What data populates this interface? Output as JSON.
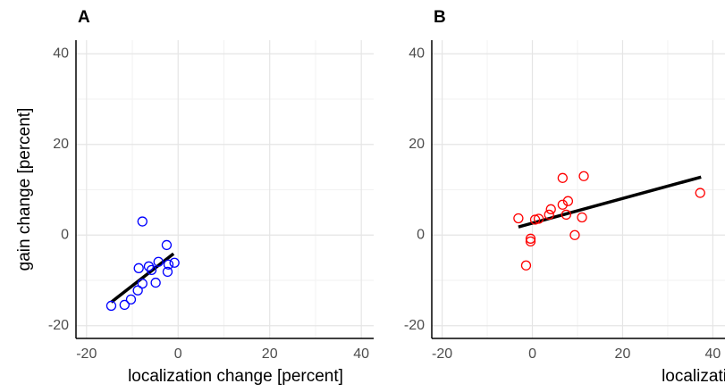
{
  "chart_data": [
    {
      "type": "scatter",
      "title": "A",
      "x_label": "localization change [percent]",
      "y_label": "gain change [percent]",
      "series": [
        {
          "color": "#0000ff",
          "x": [
            -14.6,
            -11.7,
            -10.3,
            -8.8,
            -7.8,
            -8.6,
            -7.8,
            -6.4,
            -5.8,
            -4.9,
            -4.3,
            -2.5,
            -2.1,
            -2.3,
            -0.8
          ],
          "values": [
            -15.6,
            -15.4,
            -14.2,
            -12.2,
            -10.7,
            -7.3,
            3.0,
            -6.9,
            -7.7,
            -10.5,
            -5.9,
            -2.2,
            -6.5,
            -8.1,
            -6.1
          ]
        }
      ],
      "fit_line": {
        "color": "#000000",
        "x": [
          -14.6,
          -1.0
        ],
        "values": [
          -14.8,
          -4.1
        ]
      },
      "xlim": [
        -22.3,
        42.7
      ],
      "ylim": [
        -22.8,
        43
      ],
      "xticks": [
        -20,
        0,
        20,
        40
      ],
      "yticks": [
        -20,
        0,
        20,
        40
      ],
      "x_minor_ticks": [
        -10,
        10,
        30
      ],
      "y_minor_ticks": [
        -10,
        10,
        30
      ],
      "grid": true
    },
    {
      "type": "scatter",
      "title": "B",
      "x_label": "localization change [percent]",
      "series": [
        {
          "color": "#ff0000",
          "x": [
            -3.1,
            -1.4,
            -0.4,
            -0.4,
            0.6,
            1.4,
            3.7,
            4.1,
            6.7,
            6.7,
            7.5,
            7.9,
            9.4,
            11.0,
            11.4,
            37.2
          ],
          "values": [
            3.7,
            -6.7,
            -0.8,
            -1.4,
            3.4,
            3.6,
            4.5,
            5.7,
            12.6,
            6.7,
            4.5,
            7.5,
            0.0,
            3.9,
            13.0,
            9.3
          ]
        }
      ],
      "fit_line": {
        "color": "#000000",
        "x": [
          -3.1,
          37.4
        ],
        "values": [
          1.8,
          12.8
        ]
      },
      "xlim": [
        -22.3,
        42.7
      ],
      "ylim": [
        -22.8,
        43
      ],
      "xticks": [
        -20,
        0,
        20,
        40
      ],
      "yticks": [
        -20,
        0,
        20,
        40
      ],
      "x_minor_ticks": [
        -10,
        10,
        30
      ],
      "y_minor_ticks": [
        -10,
        10,
        30
      ],
      "grid": true
    }
  ]
}
